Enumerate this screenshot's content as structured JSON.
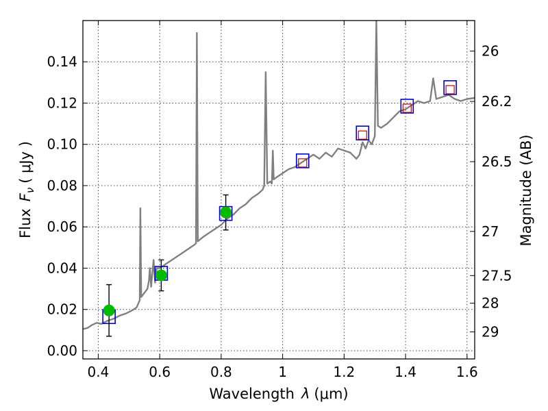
{
  "chart_data": {
    "type": "scatter",
    "xlabel": "Wavelength",
    "xlabel_symbol": "λ",
    "xlabel_unit": "(μm)",
    "ylabel": "Flux",
    "ylabel_symbol": "F",
    "ylabel_subscript": "ν",
    "ylabel_unit": "( μJy )",
    "y2label": "Magnitude (AB)",
    "xlim": [
      0.35,
      1.625
    ],
    "ylim": [
      -0.004,
      0.16
    ],
    "grid": true,
    "x_ticks": [
      0.4,
      0.6,
      0.8,
      1.0,
      1.2,
      1.4,
      1.6
    ],
    "x_tick_labels": [
      "0.4",
      "0.6",
      "0.8",
      "1",
      "1.2",
      "1.4",
      "1.6"
    ],
    "y_ticks": [
      0.0,
      0.02,
      0.04,
      0.06,
      0.08,
      0.1,
      0.12,
      0.14
    ],
    "y_tick_labels": [
      "0.00",
      "0.02",
      "0.04",
      "0.06",
      "0.08",
      "0.10",
      "0.12",
      "0.14"
    ],
    "y2_ticks": [
      {
        "label": "26",
        "flux": 0.1452
      },
      {
        "label": "26.2",
        "flux": 0.1208
      },
      {
        "label": "26.5",
        "flux": 0.0916
      },
      {
        "label": "27",
        "flux": 0.0578
      },
      {
        "label": "27.5",
        "flux": 0.0364
      },
      {
        "label": "28",
        "flux": 0.023
      },
      {
        "label": "29",
        "flux": 0.0091
      }
    ],
    "colors": {
      "model": "#808080",
      "observed": "#00bb00",
      "model_band": "#0000cc",
      "predicted": "#cc0000",
      "errorbar": "#000000"
    },
    "series": [
      {
        "kind": "line",
        "points": [
          [
            0.35,
            0.0105
          ],
          [
            0.365,
            0.011
          ],
          [
            0.38,
            0.0125
          ],
          [
            0.395,
            0.0135
          ],
          [
            0.41,
            0.013
          ],
          [
            0.43,
            0.0145
          ],
          [
            0.45,
            0.0155
          ],
          [
            0.47,
            0.017
          ],
          [
            0.49,
            0.018
          ],
          [
            0.51,
            0.0195
          ],
          [
            0.525,
            0.021
          ],
          [
            0.535,
            0.0245
          ],
          [
            0.537,
            0.069
          ],
          [
            0.54,
            0.026
          ],
          [
            0.55,
            0.028
          ],
          [
            0.56,
            0.03
          ],
          [
            0.565,
            0.034
          ],
          [
            0.568,
            0.04
          ],
          [
            0.572,
            0.031
          ],
          [
            0.58,
            0.044
          ],
          [
            0.585,
            0.033
          ],
          [
            0.59,
            0.04
          ],
          [
            0.6,
            0.04
          ],
          [
            0.62,
            0.042
          ],
          [
            0.64,
            0.044
          ],
          [
            0.66,
            0.046
          ],
          [
            0.68,
            0.048
          ],
          [
            0.7,
            0.05
          ],
          [
            0.71,
            0.051
          ],
          [
            0.718,
            0.052
          ],
          [
            0.721,
            0.154
          ],
          [
            0.724,
            0.053
          ],
          [
            0.74,
            0.055
          ],
          [
            0.76,
            0.057
          ],
          [
            0.78,
            0.059
          ],
          [
            0.8,
            0.061
          ],
          [
            0.82,
            0.064
          ],
          [
            0.84,
            0.066
          ],
          [
            0.86,
            0.069
          ],
          [
            0.88,
            0.071
          ],
          [
            0.9,
            0.074
          ],
          [
            0.92,
            0.076
          ],
          [
            0.935,
            0.078
          ],
          [
            0.94,
            0.08
          ],
          [
            0.945,
            0.135
          ],
          [
            0.95,
            0.081
          ],
          [
            0.96,
            0.082
          ],
          [
            0.965,
            0.081
          ],
          [
            0.968,
            0.097
          ],
          [
            0.971,
            0.083
          ],
          [
            0.98,
            0.084
          ],
          [
            1.0,
            0.086
          ],
          [
            1.02,
            0.088
          ],
          [
            1.04,
            0.089
          ],
          [
            1.06,
            0.091
          ],
          [
            1.08,
            0.093
          ],
          [
            1.1,
            0.095
          ],
          [
            1.12,
            0.093
          ],
          [
            1.14,
            0.096
          ],
          [
            1.16,
            0.094
          ],
          [
            1.18,
            0.098
          ],
          [
            1.2,
            0.097
          ],
          [
            1.22,
            0.096
          ],
          [
            1.24,
            0.093
          ],
          [
            1.25,
            0.095
          ],
          [
            1.26,
            0.101
          ],
          [
            1.27,
            0.098
          ],
          [
            1.28,
            0.102
          ],
          [
            1.29,
            0.1
          ],
          [
            1.3,
            0.104
          ],
          [
            1.305,
            0.16
          ],
          [
            1.31,
            0.109
          ],
          [
            1.32,
            0.108
          ],
          [
            1.34,
            0.11
          ],
          [
            1.36,
            0.113
          ],
          [
            1.38,
            0.116
          ],
          [
            1.4,
            0.117
          ],
          [
            1.42,
            0.119
          ],
          [
            1.44,
            0.121
          ],
          [
            1.46,
            0.12
          ],
          [
            1.48,
            0.121
          ],
          [
            1.49,
            0.132
          ],
          [
            1.5,
            0.122
          ],
          [
            1.52,
            0.123
          ],
          [
            1.54,
            0.124
          ],
          [
            1.56,
            0.122
          ],
          [
            1.58,
            0.121
          ],
          [
            1.6,
            0.122
          ],
          [
            1.625,
            0.1225
          ]
        ]
      },
      {
        "kind": "points",
        "values": [
          {
            "x": 0.435,
            "y": 0.0195,
            "yerr": 0.0125
          },
          {
            "x": 0.605,
            "y": 0.0365,
            "yerr": 0.0075
          },
          {
            "x": 0.815,
            "y": 0.067,
            "yerr": 0.0085
          }
        ]
      },
      {
        "kind": "points",
        "values": [
          {
            "x": 0.435,
            "y": 0.0165
          },
          {
            "x": 0.605,
            "y": 0.0375
          },
          {
            "x": 0.815,
            "y": 0.0665
          },
          {
            "x": 1.065,
            "y": 0.092
          },
          {
            "x": 1.26,
            "y": 0.1055
          },
          {
            "x": 1.405,
            "y": 0.1185
          },
          {
            "x": 1.545,
            "y": 0.1275
          }
        ]
      },
      {
        "kind": "points",
        "values": [
          {
            "x": 1.065,
            "y": 0.091
          },
          {
            "x": 1.26,
            "y": 0.1045
          },
          {
            "x": 1.405,
            "y": 0.1175
          },
          {
            "x": 1.545,
            "y": 0.1265
          }
        ]
      }
    ]
  }
}
